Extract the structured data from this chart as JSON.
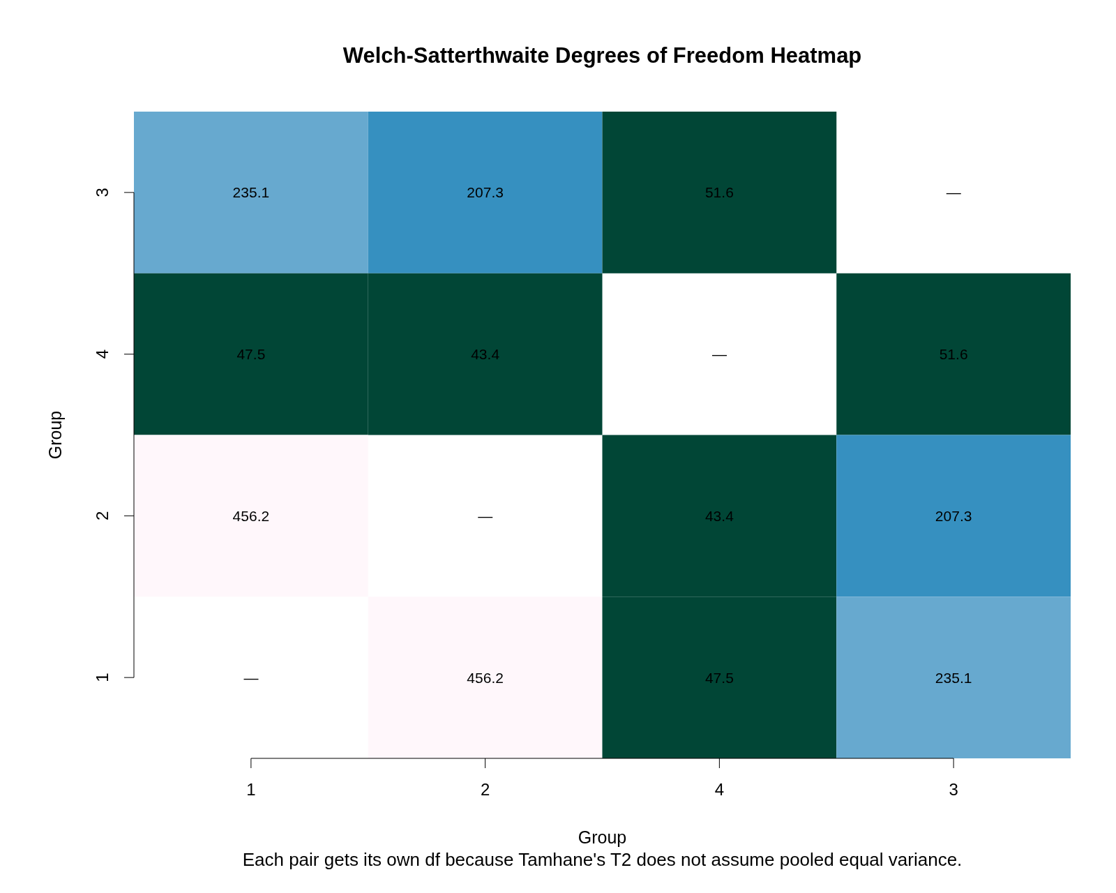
{
  "chart_data": {
    "type": "heatmap",
    "title": "Welch-Satterthwaite Degrees of Freedom Heatmap",
    "xlabel": "Group",
    "ylabel": "Group",
    "annotations": [
      "Each pair gets its own df because Tamhane's T2 does not assume pooled equal variance."
    ],
    "categories": [
      "1",
      "2",
      "4",
      "3"
    ],
    "y_categories": [
      "3",
      "4",
      "2",
      "1"
    ],
    "cells": [
      [
        235.1,
        207.3,
        51.6,
        null
      ],
      [
        47.5,
        43.4,
        null,
        51.6
      ],
      [
        456.2,
        null,
        43.4,
        207.3
      ],
      [
        null,
        456.2,
        47.5,
        235.1
      ]
    ],
    "cell_labels": [
      [
        "235.1",
        "207.3",
        "51.6",
        "—"
      ],
      [
        "47.5",
        "43.4",
        "—",
        "51.6"
      ],
      [
        "456.2",
        "—",
        "43.4",
        "207.3"
      ],
      [
        "—",
        "456.2",
        "47.5",
        "235.1"
      ]
    ]
  }
}
